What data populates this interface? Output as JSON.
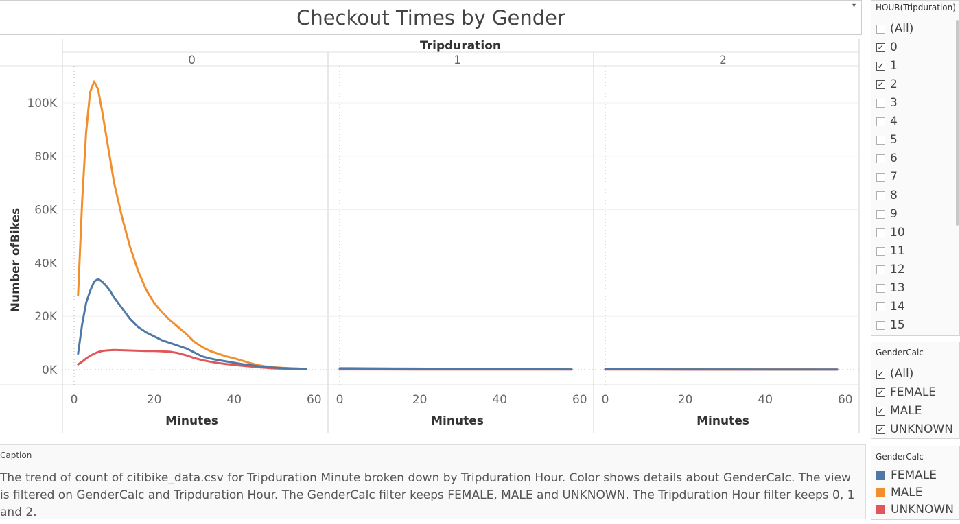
{
  "title": "Checkout Times by Gender",
  "chart_data": {
    "type": "line",
    "column_field": "Tripduration",
    "columns": [
      "0",
      "1",
      "2"
    ],
    "xlabel": "Minutes",
    "ylabel": "Number ofBikes",
    "xlim": [
      0,
      60
    ],
    "xticks": [
      0,
      20,
      40,
      60
    ],
    "ylim": [
      0,
      110000
    ],
    "yticks": [
      0,
      20000,
      40000,
      60000,
      80000,
      100000
    ],
    "ytick_labels": [
      "0K",
      "20K",
      "40K",
      "60K",
      "80K",
      "100K"
    ],
    "series": [
      {
        "name": "FEMALE",
        "color": "#4e79a7",
        "panels": [
          {
            "x": [
              1,
              2,
              3,
              4,
              5,
              6,
              7,
              8,
              9,
              10,
              12,
              14,
              16,
              18,
              20,
              22,
              24,
              26,
              28,
              30,
              32,
              34,
              36,
              38,
              40,
              42,
              44,
              46,
              48,
              50,
              52,
              54,
              56,
              58
            ],
            "y": [
              6000,
              17000,
              25000,
              29500,
              33000,
              34000,
              33000,
              31500,
              29500,
              27000,
              23000,
              19000,
              16000,
              14000,
              12500,
              11000,
              10000,
              9000,
              8000,
              6500,
              5000,
              4200,
              3600,
              3100,
              2600,
              2100,
              1700,
              1300,
              1000,
              800,
              600,
              500,
              400,
              300
            ]
          },
          {
            "x": [
              0,
              10,
              20,
              30,
              40,
              50,
              58
            ],
            "y": [
              500,
              400,
              300,
              250,
              200,
              150,
              100
            ]
          },
          {
            "x": [
              0,
              10,
              20,
              30,
              40,
              50,
              58
            ],
            "y": [
              150,
              120,
              100,
              90,
              80,
              70,
              60
            ]
          }
        ]
      },
      {
        "name": "MALE",
        "color": "#f28e2b",
        "panels": [
          {
            "x": [
              1,
              2,
              3,
              4,
              5,
              6,
              7,
              8,
              9,
              10,
              12,
              14,
              16,
              18,
              20,
              22,
              24,
              26,
              28,
              30,
              32,
              34,
              36,
              38,
              40,
              42,
              44,
              46,
              48,
              50,
              52,
              54,
              56,
              58
            ],
            "y": [
              28000,
              63000,
              89000,
              104000,
              108000,
              105000,
              97000,
              88000,
              79000,
              70000,
              57000,
              46000,
              37000,
              30000,
              25000,
              21500,
              18500,
              16000,
              13500,
              10500,
              8500,
              7000,
              6000,
              5000,
              4300,
              3400,
              2500,
              1700,
              1200,
              900,
              700,
              550,
              400,
              300
            ]
          },
          {
            "x": [
              0,
              10,
              20,
              30,
              40,
              50,
              58
            ],
            "y": [
              600,
              500,
              400,
              300,
              250,
              200,
              150
            ]
          },
          {
            "x": [
              0,
              10,
              20,
              30,
              40,
              50,
              58
            ],
            "y": [
              180,
              150,
              130,
              110,
              100,
              90,
              80
            ]
          }
        ]
      },
      {
        "name": "UNKNOWN",
        "color": "#e15759",
        "panels": [
          {
            "x": [
              1,
              2,
              3,
              4,
              5,
              6,
              7,
              8,
              9,
              10,
              12,
              14,
              16,
              18,
              20,
              22,
              24,
              26,
              28,
              30,
              32,
              34,
              36,
              38,
              40,
              42,
              44,
              46,
              48,
              50,
              52,
              54,
              56,
              58
            ],
            "y": [
              2000,
              3000,
              4200,
              5200,
              6000,
              6600,
              7000,
              7200,
              7300,
              7400,
              7300,
              7200,
              7100,
              7000,
              7000,
              6900,
              6700,
              6200,
              5400,
              4400,
              3600,
              3000,
              2500,
              2100,
              1800,
              1500,
              1200,
              900,
              700,
              500,
              400,
              300,
              250,
              200
            ]
          },
          {
            "x": [
              0,
              10,
              20,
              30,
              40,
              50,
              58
            ],
            "y": [
              100,
              90,
              80,
              70,
              60,
              50,
              40
            ]
          },
          {
            "x": [
              0,
              10,
              20,
              30,
              40,
              50,
              58
            ],
            "y": [
              50,
              40,
              35,
              30,
              25,
              20,
              15
            ]
          }
        ]
      }
    ]
  },
  "hour_filter": {
    "title": "HOUR(Tripduration)",
    "items": [
      {
        "label": "(All)",
        "checked": false
      },
      {
        "label": "0",
        "checked": true
      },
      {
        "label": "1",
        "checked": true
      },
      {
        "label": "2",
        "checked": true
      },
      {
        "label": "3",
        "checked": false
      },
      {
        "label": "4",
        "checked": false
      },
      {
        "label": "5",
        "checked": false
      },
      {
        "label": "6",
        "checked": false
      },
      {
        "label": "7",
        "checked": false
      },
      {
        "label": "8",
        "checked": false
      },
      {
        "label": "9",
        "checked": false
      },
      {
        "label": "10",
        "checked": false
      },
      {
        "label": "11",
        "checked": false
      },
      {
        "label": "12",
        "checked": false
      },
      {
        "label": "13",
        "checked": false
      },
      {
        "label": "14",
        "checked": false
      },
      {
        "label": "15",
        "checked": false
      }
    ]
  },
  "gender_filter": {
    "title": "GenderCalc",
    "items": [
      {
        "label": "(All)",
        "checked": true
      },
      {
        "label": "FEMALE",
        "checked": true
      },
      {
        "label": "MALE",
        "checked": true
      },
      {
        "label": "UNKNOWN",
        "checked": true
      }
    ]
  },
  "legend": {
    "title": "GenderCalc",
    "items": [
      {
        "label": "FEMALE",
        "color": "#4e79a7"
      },
      {
        "label": "MALE",
        "color": "#f28e2b"
      },
      {
        "label": "UNKNOWN",
        "color": "#e15759"
      }
    ]
  },
  "caption": {
    "label": "Caption",
    "text": "The trend of count of citibike_data.csv for Tripduration Minute broken down by Tripduration Hour.  Color shows details about GenderCalc. The view is filtered on GenderCalc and Tripduration Hour. The GenderCalc filter keeps FEMALE, MALE and UNKNOWN. The Tripduration Hour filter keeps 0, 1 and 2."
  },
  "icons": {
    "title_menu": "dropdown-arrow-icon"
  }
}
